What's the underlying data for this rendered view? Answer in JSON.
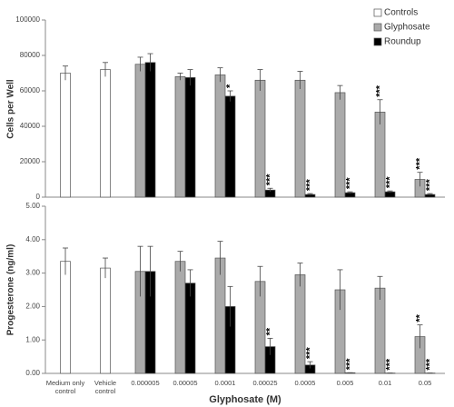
{
  "chart_data": [
    {
      "type": "bar",
      "y_label": "Cells per Well",
      "ylim": [
        0,
        100000
      ],
      "yticks": [
        0,
        20000,
        40000,
        60000,
        80000,
        100000
      ],
      "legend": "top-right",
      "series": [
        {
          "name": "Controls",
          "color": "#ffffff",
          "values": [
            70000,
            72000,
            null,
            null,
            null,
            null,
            null,
            null,
            null,
            null
          ],
          "errors": [
            4000,
            4000,
            null,
            null,
            null,
            null,
            null,
            null,
            null,
            null
          ],
          "significance": [
            null,
            null,
            null,
            null,
            null,
            null,
            null,
            null,
            null,
            null
          ]
        },
        {
          "name": "Glyphosate",
          "color": "#aaaaaa",
          "values": [
            null,
            null,
            75000,
            68000,
            69000,
            66000,
            66000,
            59000,
            48000,
            10000
          ],
          "errors": [
            null,
            null,
            4000,
            2000,
            4000,
            6000,
            5000,
            4000,
            7000,
            4000
          ],
          "significance": [
            null,
            null,
            null,
            null,
            null,
            null,
            null,
            null,
            "***",
            "***"
          ]
        },
        {
          "name": "Roundup",
          "color": "#000000",
          "values": [
            null,
            null,
            76000,
            67500,
            57000,
            4000,
            1500,
            2500,
            3000,
            1500
          ],
          "errors": [
            null,
            null,
            5000,
            4500,
            3000,
            1000,
            500,
            500,
            500,
            500
          ],
          "significance": [
            null,
            null,
            null,
            null,
            "*",
            "***",
            "***",
            "***",
            "***",
            "***"
          ]
        }
      ]
    },
    {
      "type": "bar",
      "y_label": "Progesterone (ng/ml)",
      "x_label": "Glyphosate (M)",
      "categories": [
        "Medium only control",
        "Vehicle control",
        "0.000005",
        "0.00005",
        "0.0001",
        "0.00025",
        "0.0005",
        "0.005",
        "0.01",
        "0.05"
      ],
      "ylim": [
        0,
        5
      ],
      "yticks": [
        {
          "value": 0,
          "label": "0.00"
        },
        {
          "value": 1,
          "label": "1.00"
        },
        {
          "value": 2,
          "label": "2.00"
        },
        {
          "value": 3,
          "label": "3.00"
        },
        {
          "value": 4,
          "label": "4.00"
        },
        {
          "value": 5,
          "label": "5.00"
        }
      ],
      "series": [
        {
          "name": "Controls",
          "color": "#ffffff",
          "values": [
            3.35,
            3.15,
            null,
            null,
            null,
            null,
            null,
            null,
            null,
            null
          ],
          "errors": [
            0.4,
            0.3,
            null,
            null,
            null,
            null,
            null,
            null,
            null,
            null
          ],
          "significance": [
            null,
            null,
            null,
            null,
            null,
            null,
            null,
            null,
            null,
            null
          ]
        },
        {
          "name": "Glyphosate",
          "color": "#aaaaaa",
          "values": [
            null,
            null,
            3.05,
            3.35,
            3.45,
            2.75,
            2.95,
            2.5,
            2.55,
            1.1
          ],
          "errors": [
            null,
            null,
            0.75,
            0.3,
            0.5,
            0.45,
            0.35,
            0.6,
            0.35,
            0.35
          ],
          "significance": [
            null,
            null,
            null,
            null,
            null,
            null,
            null,
            null,
            null,
            "**"
          ]
        },
        {
          "name": "Roundup",
          "color": "#000000",
          "values": [
            null,
            null,
            3.05,
            2.7,
            2.0,
            0.8,
            0.25,
            0.02,
            0.01,
            0.01
          ],
          "errors": [
            null,
            null,
            0.75,
            0.4,
            0.6,
            0.25,
            0.1,
            0,
            0,
            0
          ],
          "significance": [
            null,
            null,
            null,
            null,
            null,
            "**",
            "***",
            "***",
            "***",
            "***"
          ]
        }
      ]
    }
  ]
}
